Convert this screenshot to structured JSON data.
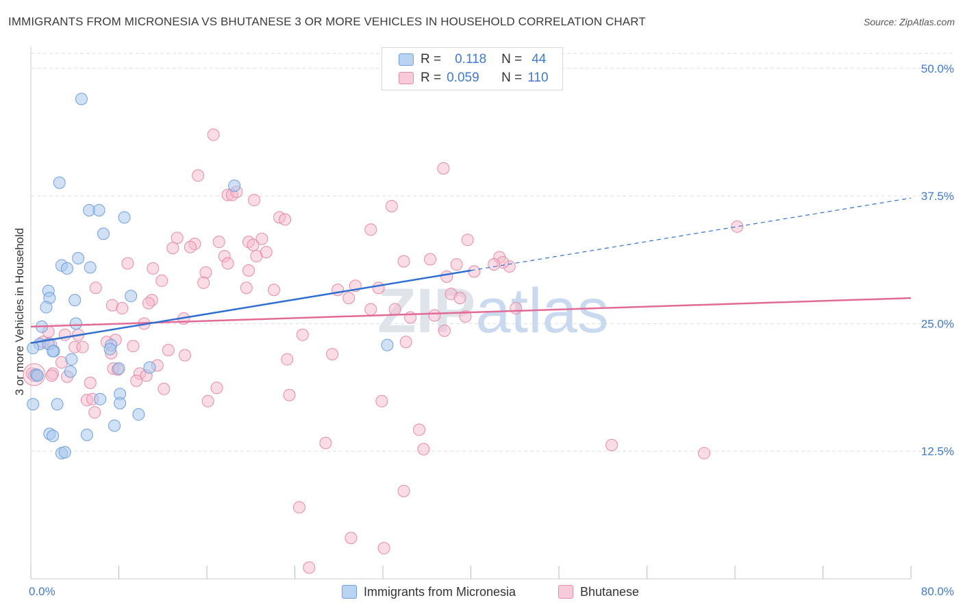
{
  "title": "IMMIGRANTS FROM MICRONESIA VS BHUTANESE 3 OR MORE VEHICLES IN HOUSEHOLD CORRELATION CHART",
  "source": "Source: ZipAtlas.com",
  "watermark": "ZIPatlas",
  "legend": {
    "series1": {
      "r_label": "R =",
      "r_value": "0.118",
      "n_label": "N =",
      "n_value": "44"
    },
    "series2": {
      "r_label": "R =",
      "r_value": "0.059",
      "n_label": "N =",
      "n_value": "110"
    }
  },
  "colors": {
    "blue_fill": "#a9c8ef",
    "blue_stroke": "#6f9fd9",
    "blue_line": "#2f6fcf",
    "pink_fill": "#f6b9cc",
    "pink_stroke": "#e58aa8",
    "pink_line": "#e26a95",
    "label_blue": "#3f7ad0"
  },
  "chart_data": {
    "type": "scatter",
    "title": "IMMIGRANTS FROM MICRONESIA VS BHUTANESE 3 OR MORE VEHICLES IN HOUSEHOLD CORRELATION CHART",
    "xlabel": "",
    "ylabel": "3 or more Vehicles in Household",
    "xlim": [
      0,
      80
    ],
    "ylim": [
      0,
      52
    ],
    "x_tick_labels": [
      "0.0%",
      "80.0%"
    ],
    "y_ticks": [
      12.5,
      25.0,
      37.5,
      50.0
    ],
    "y_tick_labels": [
      "12.5%",
      "25.0%",
      "37.5%",
      "50.0%"
    ],
    "grid": true,
    "series": [
      {
        "name": "Immigrants from Micronesia",
        "color": "#a9c8ef",
        "trend": {
          "x0": 0,
          "y0": 23.1,
          "x1": 40,
          "y1": 30.2,
          "dash_to_x": 80,
          "dash_to_y": 37.3
        },
        "points": [
          [
            4.6,
            47
          ],
          [
            2.6,
            38.8
          ],
          [
            5.3,
            36.1
          ],
          [
            6.2,
            36.1
          ],
          [
            8.5,
            35.4
          ],
          [
            18.5,
            38.5
          ],
          [
            6.6,
            33.8
          ],
          [
            4.3,
            31.4
          ],
          [
            2.8,
            30.7
          ],
          [
            3.3,
            30.4
          ],
          [
            5.4,
            30.5
          ],
          [
            1.6,
            28.2
          ],
          [
            1.7,
            27.5
          ],
          [
            4.0,
            27.3
          ],
          [
            1.4,
            26.6
          ],
          [
            9.1,
            27.7
          ],
          [
            4.1,
            25.0
          ],
          [
            1.0,
            24.7
          ],
          [
            0.8,
            23.0
          ],
          [
            0.2,
            22.6
          ],
          [
            1.6,
            23.0
          ],
          [
            7.3,
            22.9
          ],
          [
            2.1,
            22.3
          ],
          [
            2.0,
            22.3
          ],
          [
            3.7,
            21.5
          ],
          [
            7.2,
            22.5
          ],
          [
            8.0,
            20.6
          ],
          [
            10.8,
            20.7
          ],
          [
            3.6,
            20.3
          ],
          [
            0.5,
            20.0
          ],
          [
            0.6,
            19.9
          ],
          [
            6.3,
            17.6
          ],
          [
            2.4,
            17.1
          ],
          [
            8.1,
            18.1
          ],
          [
            8.1,
            17.2
          ],
          [
            0.2,
            17.1
          ],
          [
            9.8,
            16.1
          ],
          [
            7.6,
            15.0
          ],
          [
            1.7,
            14.2
          ],
          [
            2.0,
            14.0
          ],
          [
            5.1,
            14.1
          ],
          [
            2.8,
            12.3
          ],
          [
            3.1,
            12.4
          ],
          [
            32.4,
            22.9
          ]
        ]
      },
      {
        "name": "Bhutanese",
        "color": "#f6b9cc",
        "trend": {
          "x0": 0,
          "y0": 24.7,
          "x1": 80,
          "y1": 27.5
        },
        "points": [
          [
            16.6,
            43.5
          ],
          [
            37.5,
            40.2
          ],
          [
            15.2,
            39.5
          ],
          [
            17.9,
            37.6
          ],
          [
            18.3,
            37.6
          ],
          [
            18.7,
            37.9
          ],
          [
            20.3,
            37.1
          ],
          [
            32.8,
            36.5
          ],
          [
            22.6,
            35.4
          ],
          [
            23.1,
            35.2
          ],
          [
            30.9,
            34.2
          ],
          [
            64.2,
            34.5
          ],
          [
            13.3,
            33.4
          ],
          [
            19.8,
            33.0
          ],
          [
            21.0,
            33.3
          ],
          [
            17.1,
            33.0
          ],
          [
            39.7,
            33.2
          ],
          [
            12.9,
            32.4
          ],
          [
            14.9,
            32.8
          ],
          [
            14.5,
            32.5
          ],
          [
            20.2,
            32.7
          ],
          [
            21.4,
            32.0
          ],
          [
            20.5,
            31.6
          ],
          [
            17.6,
            31.6
          ],
          [
            36.3,
            31.3
          ],
          [
            42.6,
            31.5
          ],
          [
            33.9,
            31.1
          ],
          [
            8.8,
            30.9
          ],
          [
            11.1,
            30.4
          ],
          [
            17.9,
            30.9
          ],
          [
            38.7,
            30.8
          ],
          [
            43.5,
            30.6
          ],
          [
            15.9,
            30.0
          ],
          [
            19.8,
            30.2
          ],
          [
            40.3,
            30.1
          ],
          [
            37.8,
            29.6
          ],
          [
            11.9,
            29.2
          ],
          [
            15.7,
            29.0
          ],
          [
            19.6,
            28.5
          ],
          [
            29.5,
            28.7
          ],
          [
            31.6,
            28.5
          ],
          [
            22.1,
            28.3
          ],
          [
            27.9,
            28.3
          ],
          [
            5.9,
            28.5
          ],
          [
            38.2,
            27.9
          ],
          [
            28.9,
            27.5
          ],
          [
            11.0,
            27.3
          ],
          [
            39.0,
            27.5
          ],
          [
            10.7,
            27.0
          ],
          [
            7.4,
            26.8
          ],
          [
            8.3,
            26.5
          ],
          [
            30.9,
            26.4
          ],
          [
            33.1,
            26.4
          ],
          [
            44.1,
            26.5
          ],
          [
            13.9,
            25.5
          ],
          [
            34.5,
            25.6
          ],
          [
            36.7,
            25.8
          ],
          [
            39.5,
            25.7
          ],
          [
            10.3,
            25.0
          ],
          [
            1.6,
            24.2
          ],
          [
            3.1,
            23.9
          ],
          [
            24.7,
            23.9
          ],
          [
            37.6,
            24.3
          ],
          [
            4.3,
            23.9
          ],
          [
            7.7,
            23.4
          ],
          [
            6.9,
            23.2
          ],
          [
            1.8,
            23.0
          ],
          [
            1.1,
            23.2
          ],
          [
            9.3,
            22.8
          ],
          [
            4.0,
            22.7
          ],
          [
            4.7,
            22.7
          ],
          [
            34.1,
            23.2
          ],
          [
            12.5,
            22.4
          ],
          [
            14.0,
            21.9
          ],
          [
            7.3,
            22.1
          ],
          [
            23.3,
            21.5
          ],
          [
            27.4,
            22.0
          ],
          [
            2.8,
            21.2
          ],
          [
            11.5,
            20.9
          ],
          [
            7.5,
            20.6
          ],
          [
            7.9,
            20.5
          ],
          [
            9.9,
            20.1
          ],
          [
            2.0,
            20.1
          ],
          [
            0.1,
            20.1
          ],
          [
            0.3,
            19.9
          ],
          [
            0.6,
            19.9
          ],
          [
            1.9,
            19.9
          ],
          [
            3.3,
            19.8
          ],
          [
            10.5,
            19.9
          ],
          [
            9.6,
            19.4
          ],
          [
            5.4,
            19.2
          ],
          [
            12.1,
            18.6
          ],
          [
            16.9,
            18.7
          ],
          [
            23.5,
            18.0
          ],
          [
            5.1,
            17.5
          ],
          [
            5.6,
            17.6
          ],
          [
            16.1,
            17.4
          ],
          [
            31.9,
            17.4
          ],
          [
            5.8,
            16.3
          ],
          [
            35.3,
            14.6
          ],
          [
            35.7,
            12.7
          ],
          [
            26.8,
            13.3
          ],
          [
            52.8,
            13.1
          ],
          [
            61.2,
            12.3
          ],
          [
            33.9,
            8.6
          ],
          [
            24.4,
            7.0
          ],
          [
            29.1,
            4.0
          ],
          [
            32.1,
            3.0
          ],
          [
            25.3,
            1.1
          ],
          [
            42.9,
            31.0
          ],
          [
            42.1,
            30.8
          ]
        ]
      }
    ]
  },
  "bottom_legend": [
    "Immigrants from Micronesia",
    "Bhutanese"
  ]
}
